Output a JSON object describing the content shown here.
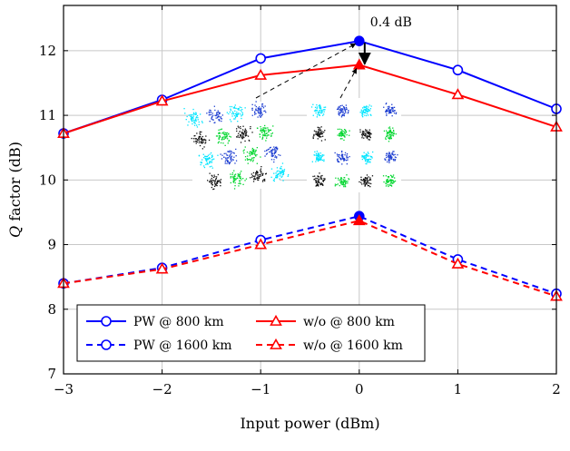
{
  "chart_data": {
    "type": "line",
    "xlabel": "Input power (dBm)",
    "ylabel_italic": "Q",
    "ylabel_rest": " factor (dB)",
    "x": [
      -3,
      -2,
      -1,
      0,
      1,
      2
    ],
    "xlim": [
      -3,
      2
    ],
    "ylim": [
      7,
      12.7
    ],
    "xticks": [
      -3,
      -2,
      -1,
      0,
      1,
      2
    ],
    "yticks": [
      7,
      8,
      9,
      10,
      11,
      12
    ],
    "grid": true,
    "series": [
      {
        "name": "PW @ 800 km",
        "color": "#0000ff",
        "dash": false,
        "marker": "circle",
        "values": [
          10.72,
          11.24,
          11.88,
          12.15,
          11.7,
          11.1
        ]
      },
      {
        "name": "w/o @ 800 km",
        "color": "#ff0000",
        "dash": false,
        "marker": "triangle",
        "values": [
          10.72,
          11.22,
          11.62,
          11.78,
          11.32,
          10.82
        ]
      },
      {
        "name": "PW @ 1600 km",
        "color": "#0000ff",
        "dash": true,
        "marker": "circle",
        "values": [
          8.4,
          8.64,
          9.07,
          9.44,
          8.77,
          8.24
        ]
      },
      {
        "name": "w/o @ 1600 km",
        "color": "#ff0000",
        "dash": true,
        "marker": "triangle",
        "values": [
          8.4,
          8.62,
          9.0,
          9.37,
          8.7,
          8.2
        ]
      }
    ],
    "annotation": {
      "text": "0.4 dB",
      "x": 0,
      "y_top": 12.15,
      "y_bottom": 11.78
    },
    "legend_position": "bottom-left",
    "inset_constellations": 2
  }
}
